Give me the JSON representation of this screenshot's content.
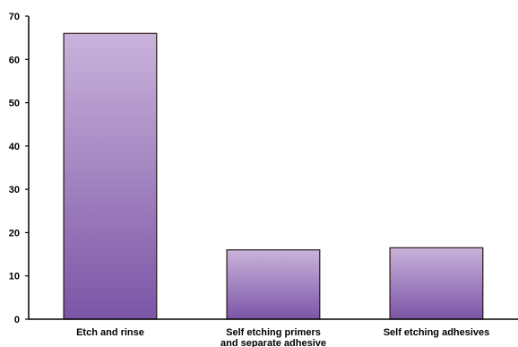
{
  "chart_data": {
    "type": "bar",
    "title": "",
    "xlabel": "",
    "ylabel": "",
    "categories": [
      [
        "Etch and rinse"
      ],
      [
        "Self etching primers",
        "and separate adhesive"
      ],
      [
        "Self etching adhesives"
      ]
    ],
    "values": [
      66,
      16,
      16.5
    ],
    "ylim": [
      0,
      70
    ],
    "yticks": [
      0,
      10,
      20,
      30,
      40,
      50,
      60,
      70
    ],
    "grid": false,
    "legend": "none",
    "colors": {
      "bar_top": "#c9b3db",
      "bar_bottom": "#7c55a6",
      "bar_edge": "#2a1616",
      "axis": "#000000"
    }
  }
}
